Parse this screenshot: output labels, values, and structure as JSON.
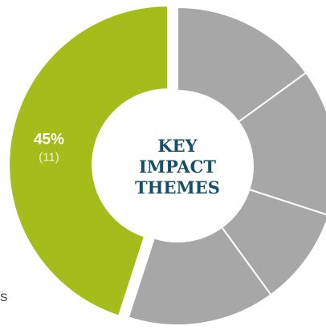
{
  "chart_data": {
    "type": "pie",
    "variant": "donut",
    "title_lines": [
      "KEY",
      "IMPACT",
      "THEMES"
    ],
    "slices": [
      {
        "value": 45,
        "label": "45%",
        "sublabel": "(11)",
        "color": "#a5bd1b",
        "exploded": true
      },
      {
        "value": 15,
        "label": "",
        "sublabel": "",
        "color": "#a7a7a7",
        "exploded": false
      },
      {
        "value": 15,
        "label": "",
        "sublabel": "",
        "color": "#a7a7a7",
        "exploded": false
      },
      {
        "value": 10,
        "label": "",
        "sublabel": "",
        "color": "#a7a7a7",
        "exploded": false
      },
      {
        "value": 15,
        "label": "",
        "sublabel": "",
        "color": "#a7a7a7",
        "exploded": false
      }
    ],
    "title_color": "#15506a",
    "label_color": "#ffffff",
    "sublabel_color": "#eef3cf",
    "divider_color": "#ffffff"
  },
  "fragment_text": "S"
}
